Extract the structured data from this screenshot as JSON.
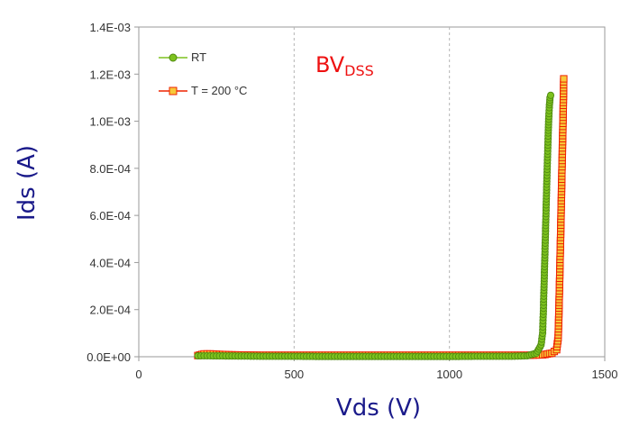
{
  "chart_data": {
    "type": "scatter",
    "title": "",
    "annotation": {
      "main": "BV",
      "sub": "DSS",
      "color": "#ee1111"
    },
    "xlabel": "Vds (V)",
    "ylabel": "Ids (A)",
    "xlim": [
      0,
      1500
    ],
    "ylim": [
      0,
      0.0014
    ],
    "x_ticks": [
      0,
      500,
      1000,
      1500
    ],
    "x_tick_labels": [
      "0",
      "500",
      "1000",
      "1500"
    ],
    "y_ticks": [
      0,
      0.0002,
      0.0004,
      0.0006,
      0.0008,
      0.001,
      0.0012,
      0.0014
    ],
    "y_tick_labels": [
      "0.0E+00",
      "2.0E-04",
      "4.0E-04",
      "6.0E-04",
      "8.0E-04",
      "1.0E-03",
      "1.2E-03",
      "1.4E-03"
    ],
    "grid": {
      "x": true,
      "y": false,
      "style": "dashed"
    },
    "legend_position": "top-left",
    "series": [
      {
        "name": "RT",
        "color": "#7dc21e",
        "edge_color": "#4f8a10",
        "marker": "circle",
        "x": [
          190,
          300,
          400,
          500,
          600,
          700,
          800,
          900,
          1000,
          1100,
          1200,
          1250,
          1280,
          1295,
          1300,
          1302,
          1304,
          1306,
          1308,
          1310,
          1312,
          1314,
          1316,
          1318,
          1320,
          1322,
          1324,
          1326
        ],
        "y": [
          4e-06,
          3e-06,
          2e-06,
          2e-06,
          1e-06,
          1e-06,
          1e-06,
          1e-06,
          1e-06,
          2e-06,
          2e-06,
          4e-06,
          1.5e-05,
          5e-05,
          0.0001,
          0.00018,
          0.00027,
          0.00037,
          0.00047,
          0.00057,
          0.00067,
          0.00077,
          0.00086,
          0.00095,
          0.00102,
          0.00107,
          0.0011,
          0.00111
        ]
      },
      {
        "name": "T = 200 °C",
        "color": "#f7c93a",
        "edge_color": "#ee2200",
        "marker": "square",
        "x": [
          190,
          210,
          230,
          260,
          300,
          400,
          500,
          600,
          700,
          800,
          900,
          1000,
          1100,
          1200,
          1250,
          1300,
          1330,
          1345,
          1350,
          1352,
          1354,
          1356,
          1358,
          1360,
          1362,
          1364,
          1366,
          1368
        ],
        "y": [
          5e-06,
          1.2e-05,
          1.2e-05,
          1e-05,
          8e-06,
          6e-06,
          6e-06,
          6e-06,
          6e-06,
          6e-06,
          6e-06,
          6e-06,
          6e-06,
          6e-06,
          6e-06,
          8e-06,
          1.5e-05,
          3e-05,
          8e-05,
          0.00017,
          0.00028,
          0.0004,
          0.00052,
          0.00065,
          0.00078,
          0.0009,
          0.00103,
          0.00118
        ]
      }
    ]
  }
}
